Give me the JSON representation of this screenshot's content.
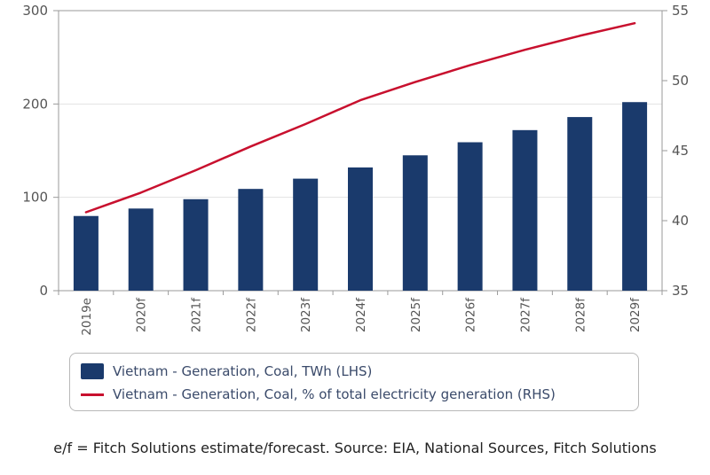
{
  "chart_data": {
    "type": "bar",
    "categories": [
      "2019e",
      "2020f",
      "2021f",
      "2022f",
      "2023f",
      "2024f",
      "2025f",
      "2026f",
      "2027f",
      "2028f",
      "2029f"
    ],
    "series": [
      {
        "name": "Vietnam - Generation, Coal, TWh (LHS)",
        "type": "bar",
        "axis": "left",
        "color": "#1a3a6c",
        "values": [
          80,
          88,
          98,
          109,
          120,
          132,
          145,
          159,
          172,
          186,
          202
        ]
      },
      {
        "name": "Vietnam - Generation, Coal, % of total electricity generation (RHS)",
        "type": "line",
        "axis": "right",
        "color": "#c8102e",
        "values": [
          40.6,
          42.0,
          43.6,
          45.3,
          46.9,
          48.6,
          49.9,
          51.1,
          52.2,
          53.2,
          54.1
        ]
      }
    ],
    "yleft": {
      "min": 0,
      "max": 300,
      "ticks": [
        0,
        100,
        200,
        300
      ]
    },
    "yright": {
      "min": 35,
      "max": 55,
      "ticks": [
        35,
        40,
        45,
        50,
        55
      ]
    },
    "grid": true,
    "legend_position": "bottom",
    "footnote": "e/f = Fitch Solutions estimate/forecast. Source: EIA, National Sources, Fitch Solutions"
  }
}
